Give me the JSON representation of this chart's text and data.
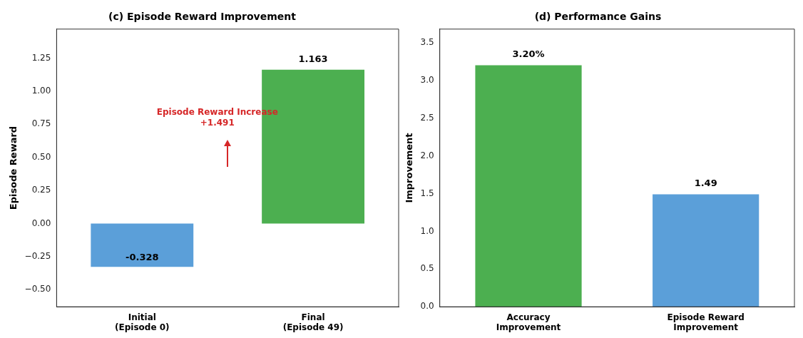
{
  "chart_data": [
    {
      "type": "bar",
      "title": "(c) Episode Reward Improvement",
      "ylabel": "Episode Reward",
      "categories": [
        "Initial\n(Episode 0)",
        "Final\n(Episode 49)"
      ],
      "values": [
        -0.328,
        1.163
      ],
      "colors": [
        "#5b9fd9",
        "#4caf50"
      ],
      "value_labels": [
        "-0.328",
        "1.163"
      ],
      "ylim": [
        -0.63,
        1.47
      ],
      "yticks": [
        {
          "value": -0.5,
          "label": "−0.50"
        },
        {
          "value": -0.25,
          "label": "−0.25"
        },
        {
          "value": 0,
          "label": "0.00"
        },
        {
          "value": 0.25,
          "label": "0.25"
        },
        {
          "value": 0.5,
          "label": "0.50"
        },
        {
          "value": 0.75,
          "label": "0.75"
        },
        {
          "value": 1,
          "label": "1.00"
        },
        {
          "value": 1.25,
          "label": "1.25"
        }
      ],
      "annotations": [
        "Episode Reward Increase\n+1.491"
      ]
    },
    {
      "type": "bar",
      "title": "(d) Performance Gains",
      "ylabel": "Improvement",
      "categories": [
        "Accuracy\nImprovement",
        "Episode Reward\nImprovement"
      ],
      "values": [
        3.2,
        1.49
      ],
      "colors": [
        "#4caf50",
        "#5b9fd9"
      ],
      "value_labels": [
        "3.20%",
        "1.49"
      ],
      "ylim": [
        0,
        3.68
      ],
      "yticks": [
        {
          "value": 0,
          "label": "0.0"
        },
        {
          "value": 0.5,
          "label": "0.5"
        },
        {
          "value": 1,
          "label": "1.0"
        },
        {
          "value": 1.5,
          "label": "1.5"
        },
        {
          "value": 2,
          "label": "2.0"
        },
        {
          "value": 2.5,
          "label": "2.5"
        },
        {
          "value": 3,
          "label": "3.0"
        },
        {
          "value": 3.5,
          "label": "3.5"
        }
      ]
    }
  ]
}
